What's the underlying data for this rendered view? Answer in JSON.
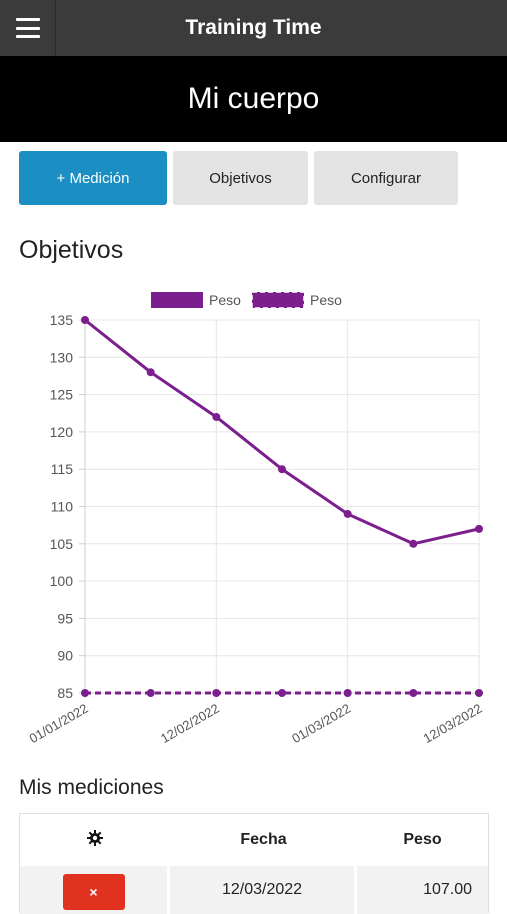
{
  "app": {
    "title": "Training Time"
  },
  "header": {
    "title": "Mi cuerpo"
  },
  "actions": {
    "add_label": "+ Medición",
    "objectives_label": "Objetivos",
    "configure_label": "Configurar"
  },
  "section": {
    "title": "Objetivos"
  },
  "chart_data": {
    "type": "line",
    "x": [
      "01/01/2022",
      "",
      "12/02/2022",
      "",
      "01/03/2022",
      "",
      "12/03/2022"
    ],
    "x_tick_labels": [
      "01/01/2022",
      "12/02/2022",
      "01/03/2022",
      "12/03/2022"
    ],
    "series": [
      {
        "name": "Peso",
        "style": "solid",
        "color": "#7b1e8e",
        "values": [
          135,
          128,
          122,
          115,
          109,
          105,
          107
        ]
      },
      {
        "name": "Peso",
        "style": "dashed",
        "color": "#7b1e8e",
        "values": [
          85,
          85,
          85,
          85,
          85,
          85,
          85
        ]
      }
    ],
    "ylim": [
      85,
      135
    ],
    "yticks": [
      135,
      130,
      125,
      120,
      115,
      110,
      105,
      100,
      95,
      90,
      85
    ],
    "grid": true,
    "legend": "top-center"
  },
  "measurements": {
    "title": "Mis mediciones",
    "columns": {
      "settings_icon": "gear-icon",
      "date": "Fecha",
      "weight": "Peso"
    },
    "rows": [
      {
        "delete_label": "×",
        "date": "12/03/2022",
        "weight": "107.00"
      }
    ]
  },
  "colors": {
    "primary": "#1b8fc4",
    "danger": "#e0321f",
    "series": "#7b1e8e"
  }
}
